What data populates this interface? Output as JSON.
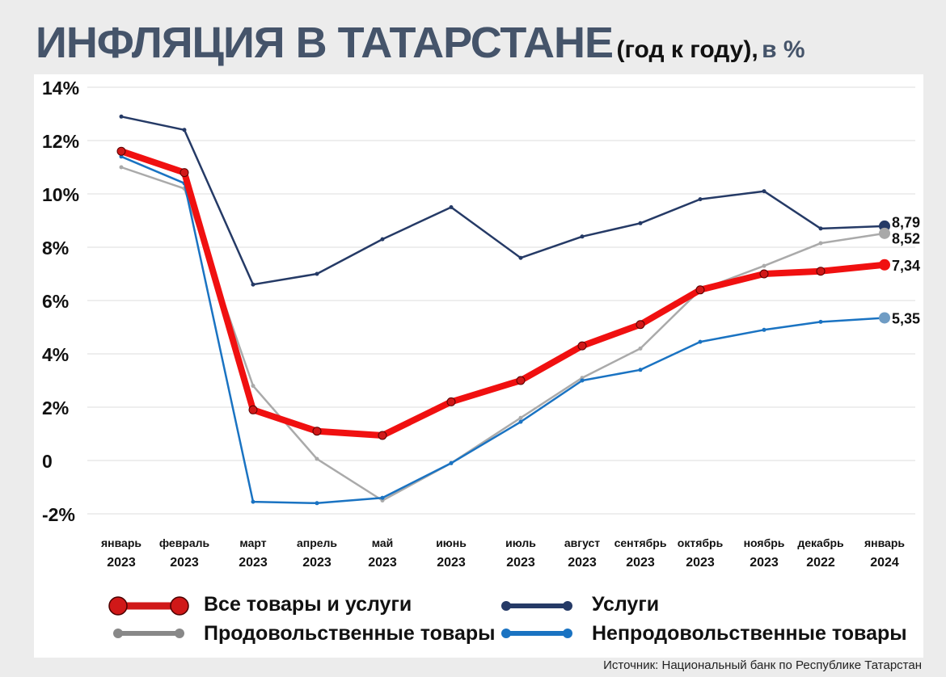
{
  "title": {
    "main": "ИНФЛЯЦИЯ В ТАТАРСТАНЕ",
    "sub": "(год к году),",
    "unit": "в %"
  },
  "source": "Источник: Национальный банк по Республике Татарстан",
  "chart_data": {
    "type": "line",
    "title": "ИНФЛЯЦИЯ В ТАТАРСТАНЕ (год к году), в %",
    "xlabel": "",
    "ylabel": "%",
    "ylim": [
      -2,
      14
    ],
    "yticks": [
      -2,
      0,
      2,
      4,
      6,
      8,
      10,
      12,
      14
    ],
    "ytick_labels": [
      "-2%",
      "0",
      "2%",
      "4%",
      "6%",
      "8%",
      "10%",
      "12%",
      "14%"
    ],
    "grid": true,
    "legend_placement": "bottom",
    "categories": [
      {
        "month": "январь",
        "year": "2023"
      },
      {
        "month": "февраль",
        "year": "2023"
      },
      {
        "month": "март",
        "year": "2023"
      },
      {
        "month": "апрель",
        "year": "2023"
      },
      {
        "month": "май",
        "year": "2023"
      },
      {
        "month": "июнь",
        "year": "2023"
      },
      {
        "month": "июль",
        "year": "2023"
      },
      {
        "month": "август",
        "year": "2023"
      },
      {
        "month": "сентябрь",
        "year": "2023"
      },
      {
        "month": "октябрь",
        "year": "2023"
      },
      {
        "month": "ноябрь",
        "year": "2023"
      },
      {
        "month": "декабрь",
        "year": "2022"
      },
      {
        "month": "январь",
        "year": "2024"
      }
    ],
    "series": [
      {
        "name": "Услуги",
        "color": "#253a66",
        "values": [
          12.9,
          12.4,
          6.6,
          7.0,
          8.3,
          9.5,
          7.6,
          8.4,
          8.9,
          9.8,
          10.1,
          8.7,
          8.79
        ],
        "end_label": "8,79",
        "end_color": "#253a66"
      },
      {
        "name": "Продовольственные товары",
        "color": "#aaaaaa",
        "values": [
          11.0,
          10.2,
          2.8,
          0.06,
          -1.5,
          -0.1,
          1.6,
          3.1,
          4.2,
          6.4,
          7.3,
          8.15,
          8.52
        ],
        "end_label": "8,52",
        "end_color": "#a8a8a8"
      },
      {
        "name": "Непродовольственные товары",
        "color": "#1a73c2",
        "values": [
          11.4,
          10.4,
          -1.55,
          -1.6,
          -1.4,
          -0.1,
          1.45,
          3.0,
          3.4,
          4.45,
          4.9,
          5.2,
          5.35
        ],
        "end_label": "5,35",
        "end_color": "#6f9cc4"
      },
      {
        "name": "Все товары и услуги",
        "color": "#f01010",
        "values": [
          11.6,
          10.8,
          1.9,
          1.1,
          0.94,
          2.2,
          3.0,
          4.3,
          5.1,
          6.4,
          7.0,
          7.1,
          7.34
        ],
        "end_label": "7,34",
        "end_color": "#f01010"
      }
    ],
    "legend": [
      {
        "label": "Все товары и услуги",
        "color": "#d01818"
      },
      {
        "label": "Услуги",
        "color": "#253a66"
      },
      {
        "label": "Продовольственные товары",
        "color": "#888888"
      },
      {
        "label": "Непродовольственные товары",
        "color": "#1a73c2"
      }
    ]
  }
}
